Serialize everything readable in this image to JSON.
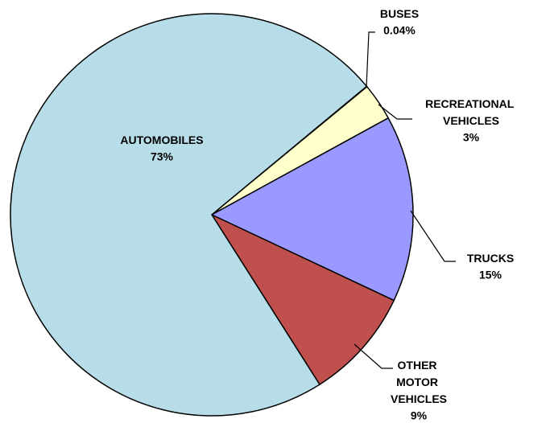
{
  "chart_data": {
    "type": "pie",
    "categories": [
      "BUSES",
      "RECREATIONAL VEHICLES",
      "TRUCKS",
      "OTHER MOTOR VEHICLES",
      "AUTOMOBILES"
    ],
    "values": [
      0.04,
      3,
      15,
      9,
      73
    ],
    "value_labels": [
      "0.04%",
      "3%",
      "15%",
      "9%",
      "73%"
    ],
    "colors": [
      "#4f81bd",
      "#ffffcc",
      "#9999ff",
      "#c0504d",
      "#b7dde8"
    ]
  }
}
